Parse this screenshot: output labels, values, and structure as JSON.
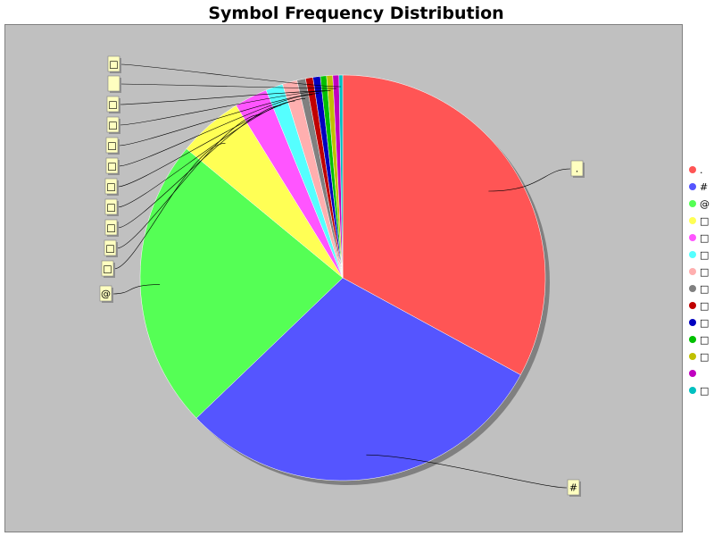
{
  "chart_data": {
    "type": "pie",
    "title": "Symbol Frequency Distribution",
    "categories": [
      ".",
      "#",
      "@",
      "□",
      "□",
      "□",
      "□",
      "□",
      "□",
      "□",
      "□",
      "□",
      "",
      "□"
    ],
    "values": [
      33.6,
      30.5,
      23.6,
      5.3,
      2.7,
      1.4,
      1.2,
      0.7,
      0.6,
      0.6,
      0.5,
      0.5,
      0.5,
      0.3
    ],
    "colors": [
      "#ff5555",
      "#5555ff",
      "#55ff55",
      "#ffff55",
      "#ff55ff",
      "#55ffff",
      "#ffafaf",
      "#808080",
      "#c00000",
      "#0000c0",
      "#00c000",
      "#c0c000",
      "#c000c0",
      "#00c0c0"
    ],
    "start_angle": "12 o'clock",
    "direction": "clockwise",
    "legend_position": "right",
    "background": "#c0c0c0",
    "label_background": "#ffffc0"
  }
}
